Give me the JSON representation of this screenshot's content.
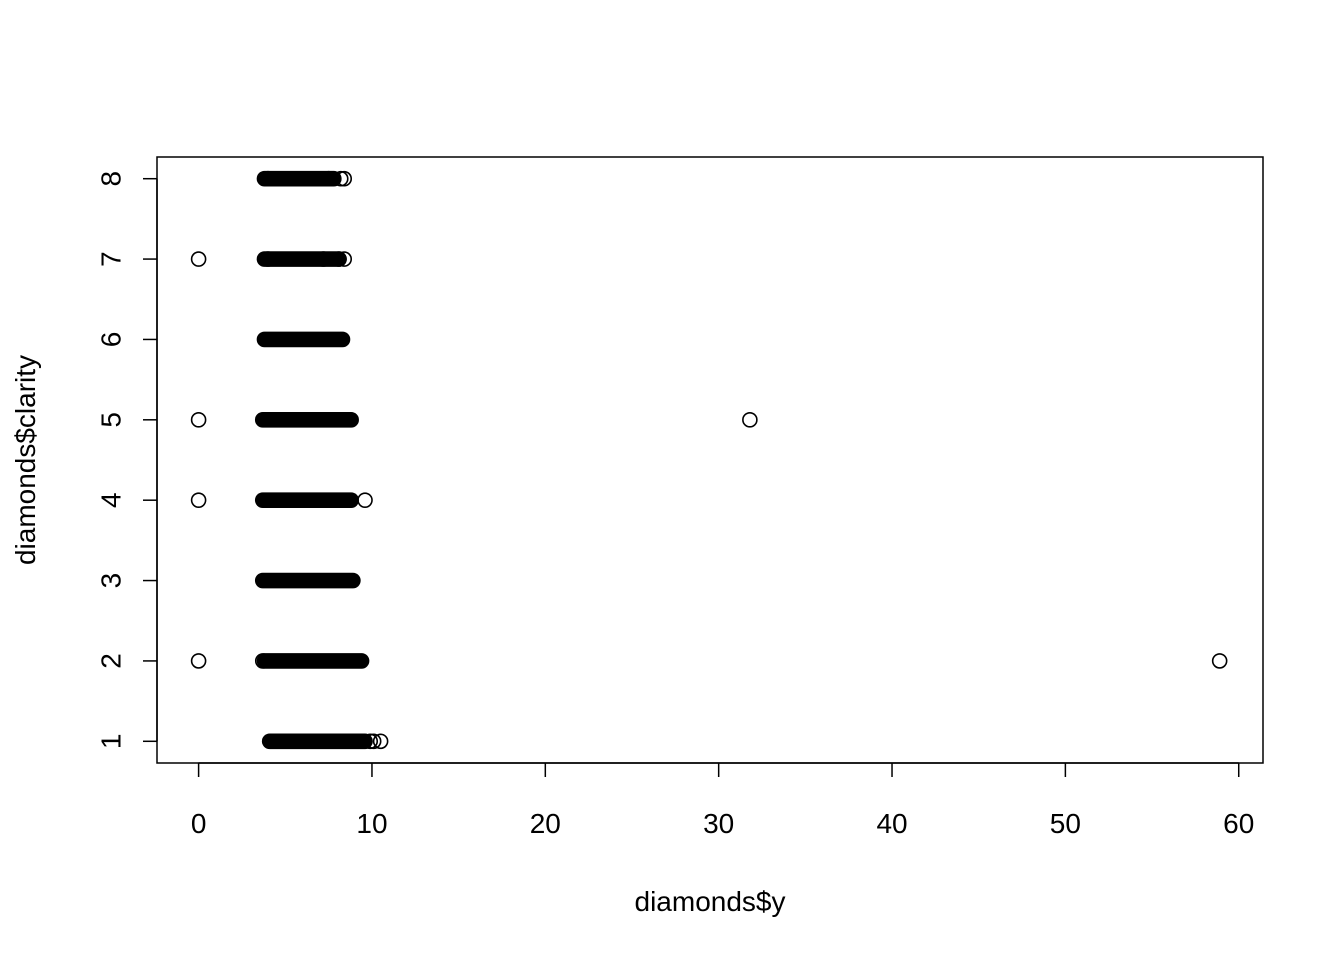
{
  "chart_data": {
    "type": "scatter",
    "title": "",
    "xlabel": "diamonds$y",
    "ylabel": "diamonds$clarity",
    "xlim": [
      -2.4,
      61.4
    ],
    "ylim": [
      0.73,
      8.27
    ],
    "x_ticks": [
      0,
      10,
      20,
      30,
      40,
      50,
      60
    ],
    "y_ticks": [
      1,
      2,
      3,
      4,
      5,
      6,
      7,
      8
    ],
    "grid": false,
    "legend": "none",
    "dense_ranges": [
      {
        "y": 1,
        "x_min": 4.1,
        "x_max": 9.6
      },
      {
        "y": 2,
        "x_min": 3.8,
        "x_max": 9.4
      },
      {
        "y": 3,
        "x_min": 3.7,
        "x_max": 8.9
      },
      {
        "y": 4,
        "x_min": 3.7,
        "x_max": 8.8
      },
      {
        "y": 5,
        "x_min": 3.7,
        "x_max": 8.8
      },
      {
        "y": 6,
        "x_min": 3.8,
        "x_max": 8.3
      },
      {
        "y": 7,
        "x_min": 3.8,
        "x_max": 8.1
      },
      {
        "y": 8,
        "x_min": 3.8,
        "x_max": 7.8
      }
    ],
    "points": [
      {
        "x": 0.0,
        "y": 7
      },
      {
        "x": 0.0,
        "y": 5
      },
      {
        "x": 0.0,
        "y": 4
      },
      {
        "x": 0.0,
        "y": 2
      },
      {
        "x": 31.8,
        "y": 5
      },
      {
        "x": 58.9,
        "y": 2
      },
      {
        "x": 9.6,
        "y": 4
      },
      {
        "x": 10.5,
        "y": 1
      },
      {
        "x": 10.1,
        "y": 1
      },
      {
        "x": 9.9,
        "y": 1
      },
      {
        "x": 8.4,
        "y": 8
      },
      {
        "x": 8.2,
        "y": 8
      },
      {
        "x": 8.4,
        "y": 7
      },
      {
        "x": 8.1,
        "y": 7
      },
      {
        "x": 3.7,
        "y": 2
      },
      {
        "x": 4.0,
        "y": 8
      },
      {
        "x": 7.5,
        "y": 8
      },
      {
        "x": 4.0,
        "y": 7
      },
      {
        "x": 7.2,
        "y": 7
      }
    ]
  }
}
